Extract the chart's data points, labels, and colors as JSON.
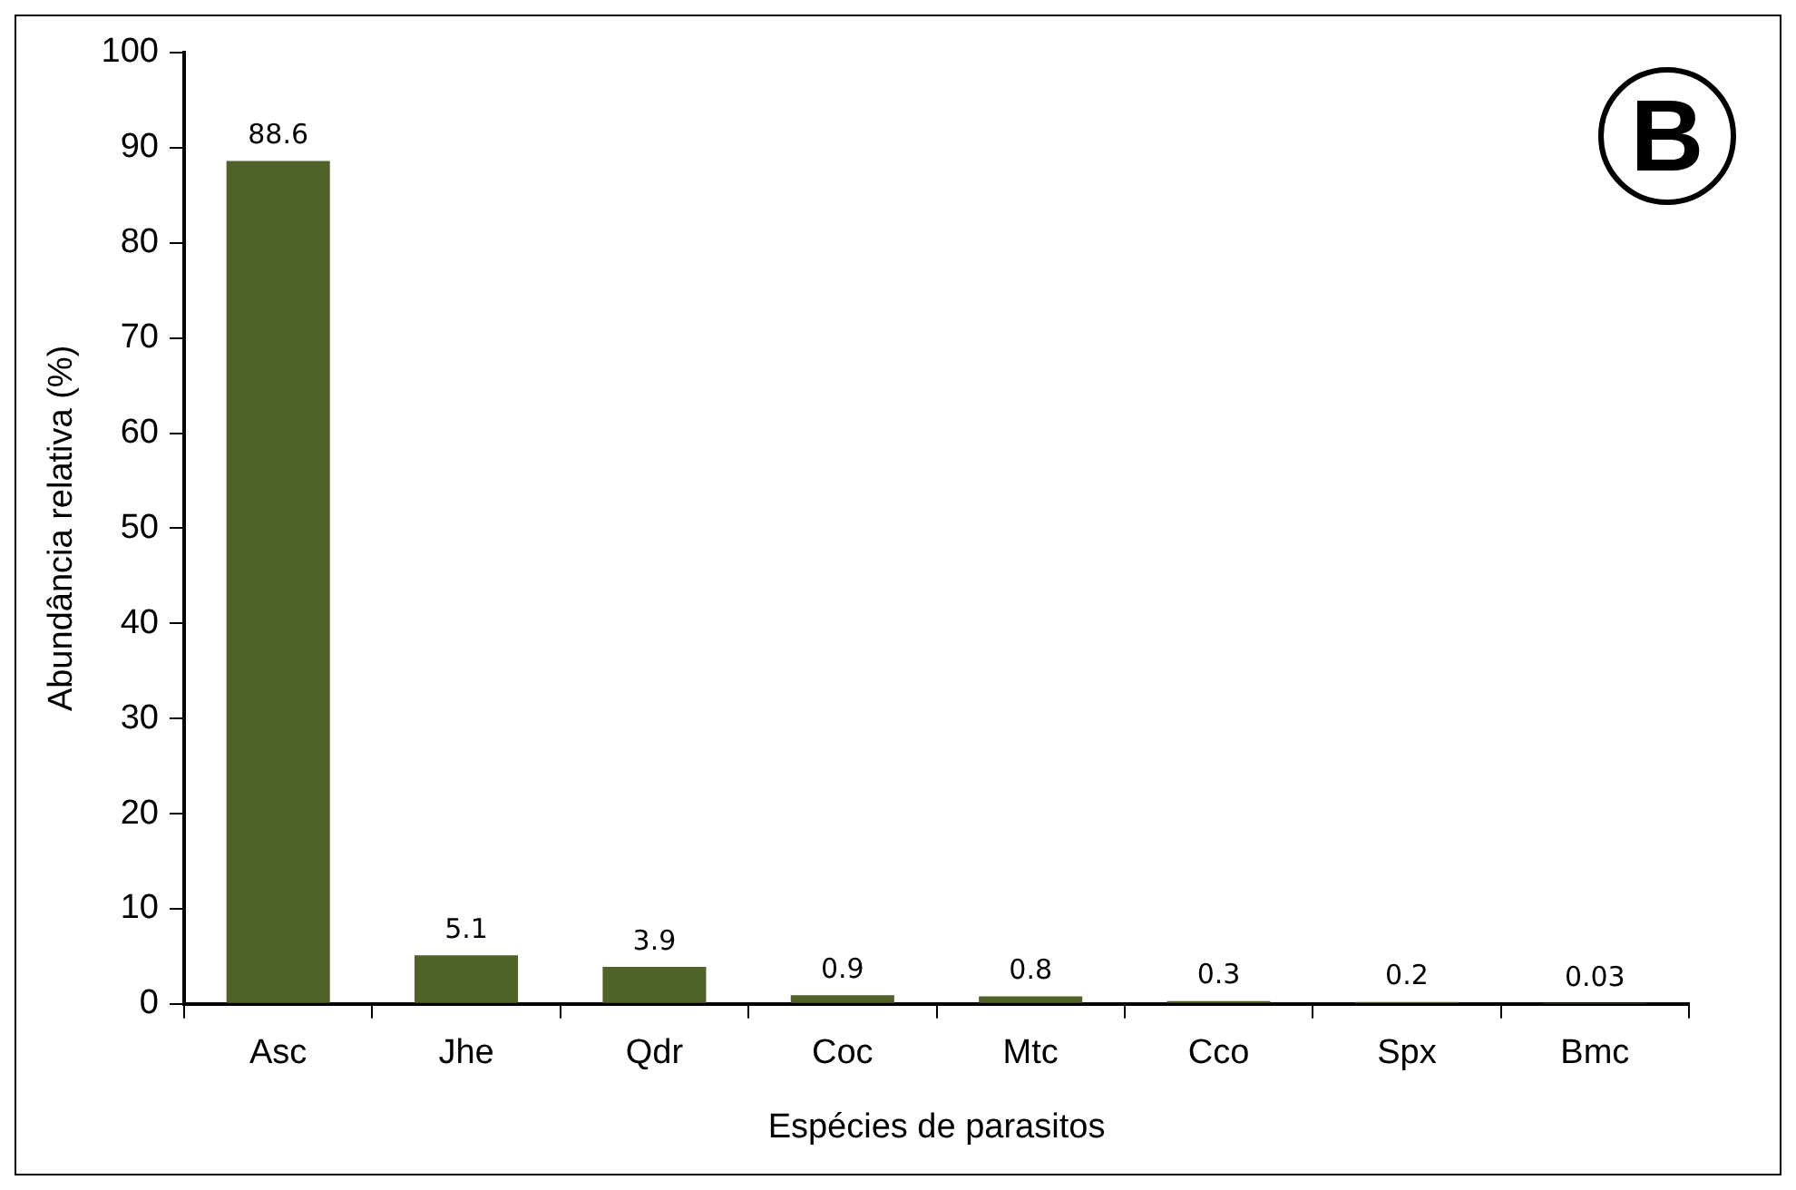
{
  "chart_data": {
    "type": "bar",
    "xlabel": "Espécies de parasitos",
    "ylabel": "Abundância relativa (%)",
    "categories": [
      "Asc",
      "Jhe",
      "Qdr",
      "Coc",
      "Mtc",
      "Cco",
      "Spx",
      "Bmc"
    ],
    "values": [
      88.6,
      5.1,
      3.9,
      0.9,
      0.8,
      0.3,
      0.2,
      0.03
    ],
    "color": "#4f6228",
    "ylim": [
      0,
      100
    ],
    "yticks": [
      0,
      10,
      20,
      30,
      40,
      50,
      60,
      70,
      80,
      90,
      100
    ],
    "data_labels": true,
    "grid": false,
    "legend": false,
    "annotations": [
      "B"
    ]
  }
}
